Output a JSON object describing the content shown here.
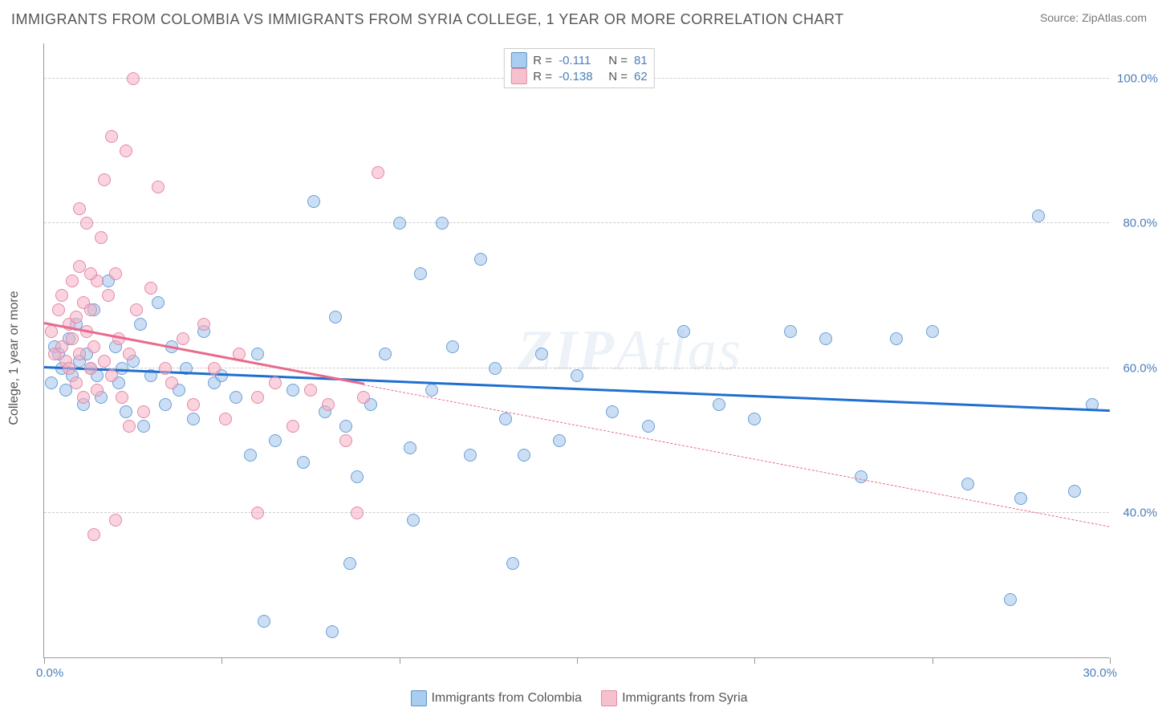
{
  "title": "IMMIGRANTS FROM COLOMBIA VS IMMIGRANTS FROM SYRIA COLLEGE, 1 YEAR OR MORE CORRELATION CHART",
  "source": "Source: ZipAtlas.com",
  "ylabel": "College, 1 year or more",
  "watermark": {
    "prefix": "ZIP",
    "suffix": "Atlas"
  },
  "chart": {
    "type": "scatter",
    "xlim": [
      0,
      30
    ],
    "ylim": [
      20,
      105
    ],
    "xaxis_min_label": "0.0%",
    "xaxis_max_label": "30.0%",
    "xticks": [
      0,
      5,
      10,
      15,
      20,
      25,
      30
    ],
    "y_gridlines": [
      {
        "value": 40,
        "label": "40.0%"
      },
      {
        "value": 60,
        "label": "60.0%"
      },
      {
        "value": 80,
        "label": "80.0%"
      },
      {
        "value": 100,
        "label": "100.0%"
      }
    ],
    "axis_label_color": "#4a7ebb",
    "grid_color": "#cccccc",
    "border_color": "#999999",
    "series": [
      {
        "name": "Immigrants from Colombia",
        "R": "-0.111",
        "N": "81",
        "marker_fill": "rgba(160,195,235,0.55)",
        "marker_stroke": "#6aa0d8",
        "trend_color": "#1f6fd0",
        "swatch_fill": "#a8cdef",
        "swatch_stroke": "#5b93c9",
        "trend": {
          "x1": 0,
          "y1": 60,
          "x2": 30,
          "y2": 54,
          "solid_to_x": 30
        },
        "points": [
          [
            0.2,
            58
          ],
          [
            0.3,
            63
          ],
          [
            0.4,
            62
          ],
          [
            0.5,
            60
          ],
          [
            0.6,
            57
          ],
          [
            0.7,
            64
          ],
          [
            0.8,
            59
          ],
          [
            0.9,
            66
          ],
          [
            1.0,
            61
          ],
          [
            1.1,
            55
          ],
          [
            1.2,
            62
          ],
          [
            1.3,
            60
          ],
          [
            1.4,
            68
          ],
          [
            1.6,
            56
          ],
          [
            1.8,
            72
          ],
          [
            2.0,
            63
          ],
          [
            2.1,
            58
          ],
          [
            2.3,
            54
          ],
          [
            2.5,
            61
          ],
          [
            2.7,
            66
          ],
          [
            2.8,
            52
          ],
          [
            3.0,
            59
          ],
          [
            3.2,
            69
          ],
          [
            3.4,
            55
          ],
          [
            3.6,
            63
          ],
          [
            3.8,
            57
          ],
          [
            4.0,
            60
          ],
          [
            4.2,
            53
          ],
          [
            4.5,
            65
          ],
          [
            4.8,
            58
          ],
          [
            5.0,
            59
          ],
          [
            5.4,
            56
          ],
          [
            5.8,
            48
          ],
          [
            6.0,
            62
          ],
          [
            6.5,
            50
          ],
          [
            7.0,
            57
          ],
          [
            7.3,
            47
          ],
          [
            7.6,
            83
          ],
          [
            7.9,
            54
          ],
          [
            8.2,
            67
          ],
          [
            8.5,
            52
          ],
          [
            8.8,
            45
          ],
          [
            9.2,
            55
          ],
          [
            9.6,
            62
          ],
          [
            10.0,
            80
          ],
          [
            10.3,
            49
          ],
          [
            10.6,
            73
          ],
          [
            10.9,
            57
          ],
          [
            11.2,
            80
          ],
          [
            11.5,
            63
          ],
          [
            12.0,
            48
          ],
          [
            12.3,
            75
          ],
          [
            12.7,
            60
          ],
          [
            13.0,
            53
          ],
          [
            13.5,
            48
          ],
          [
            14.0,
            62
          ],
          [
            14.5,
            50
          ],
          [
            15.0,
            59
          ],
          [
            16.0,
            54
          ],
          [
            17.0,
            52
          ],
          [
            18.0,
            65
          ],
          [
            19.0,
            55
          ],
          [
            20.0,
            53
          ],
          [
            21.0,
            65
          ],
          [
            22.0,
            64
          ],
          [
            23.0,
            45
          ],
          [
            24.0,
            64
          ],
          [
            25.0,
            65
          ],
          [
            26.0,
            44
          ],
          [
            27.5,
            42
          ],
          [
            28.0,
            81
          ],
          [
            29.0,
            43
          ],
          [
            29.5,
            55
          ],
          [
            6.2,
            25
          ],
          [
            8.1,
            23.5
          ],
          [
            8.6,
            33
          ],
          [
            10.4,
            39
          ],
          [
            13.2,
            33
          ],
          [
            27.2,
            28
          ],
          [
            1.5,
            59
          ],
          [
            2.2,
            60
          ]
        ]
      },
      {
        "name": "Immigrants from Syria",
        "R": "-0.138",
        "N": "62",
        "marker_fill": "rgba(245,175,195,0.55)",
        "marker_stroke": "#e28aa5",
        "trend_color": "#e86a8c",
        "swatch_fill": "#f7c0ce",
        "swatch_stroke": "#e48ba3",
        "trend": {
          "x1": 0,
          "y1": 66,
          "x2": 30,
          "y2": 38,
          "solid_to_x": 9
        },
        "points": [
          [
            0.2,
            65
          ],
          [
            0.3,
            62
          ],
          [
            0.4,
            68
          ],
          [
            0.5,
            70
          ],
          [
            0.5,
            63
          ],
          [
            0.6,
            61
          ],
          [
            0.7,
            66
          ],
          [
            0.7,
            60
          ],
          [
            0.8,
            64
          ],
          [
            0.8,
            72
          ],
          [
            0.9,
            58
          ],
          [
            0.9,
            67
          ],
          [
            1.0,
            74
          ],
          [
            1.0,
            62
          ],
          [
            1.1,
            69
          ],
          [
            1.1,
            56
          ],
          [
            1.2,
            65
          ],
          [
            1.2,
            80
          ],
          [
            1.3,
            68
          ],
          [
            1.3,
            60
          ],
          [
            1.4,
            63
          ],
          [
            1.5,
            72
          ],
          [
            1.5,
            57
          ],
          [
            1.6,
            78
          ],
          [
            1.7,
            61
          ],
          [
            1.7,
            86
          ],
          [
            1.8,
            70
          ],
          [
            1.9,
            59
          ],
          [
            1.9,
            92
          ],
          [
            2.0,
            73
          ],
          [
            2.1,
            64
          ],
          [
            2.2,
            56
          ],
          [
            2.3,
            90
          ],
          [
            2.4,
            62
          ],
          [
            2.5,
            100
          ],
          [
            2.6,
            68
          ],
          [
            2.8,
            54
          ],
          [
            3.0,
            71
          ],
          [
            3.2,
            85
          ],
          [
            3.4,
            60
          ],
          [
            3.6,
            58
          ],
          [
            3.9,
            64
          ],
          [
            4.2,
            55
          ],
          [
            4.5,
            66
          ],
          [
            4.8,
            60
          ],
          [
            5.1,
            53
          ],
          [
            5.5,
            62
          ],
          [
            6.0,
            56
          ],
          [
            6.0,
            40
          ],
          [
            6.5,
            58
          ],
          [
            7.0,
            52
          ],
          [
            7.5,
            57
          ],
          [
            8.0,
            55
          ],
          [
            8.5,
            50
          ],
          [
            8.8,
            40
          ],
          [
            9.0,
            56
          ],
          [
            9.4,
            87
          ],
          [
            1.4,
            37
          ],
          [
            2.0,
            39
          ],
          [
            2.4,
            52
          ],
          [
            1.0,
            82
          ],
          [
            1.3,
            73
          ]
        ]
      }
    ]
  }
}
